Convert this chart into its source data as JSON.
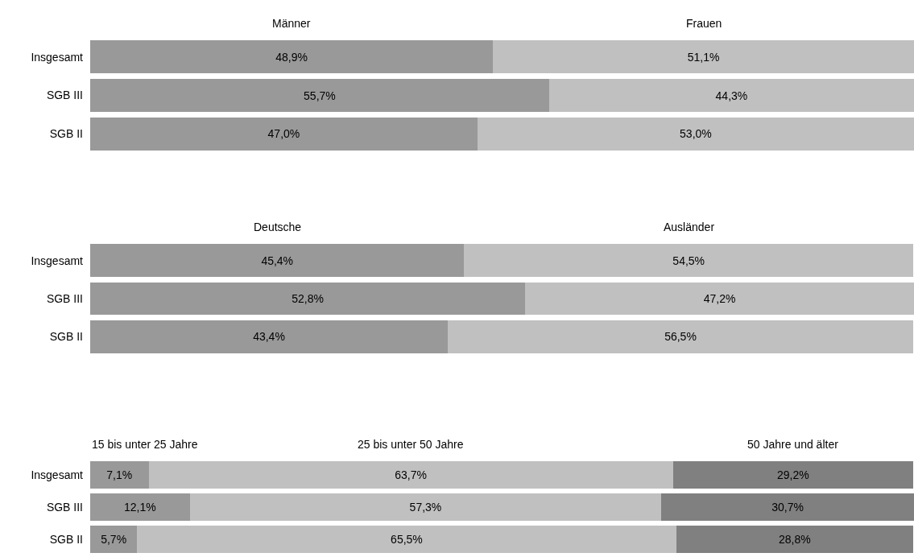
{
  "chart_data": [
    {
      "type": "bar",
      "orientation": "horizontal",
      "stacked": true,
      "legend": false,
      "tick_labels": "y",
      "categories": [
        "Insgesamt",
        "SGB III",
        "SGB II"
      ],
      "series": [
        {
          "name": "Männer",
          "color": "#999999",
          "values": [
            48.9,
            55.7,
            47.0
          ],
          "value_labels": [
            "48,9%",
            "55,7%",
            "47,0%"
          ]
        },
        {
          "name": "Frauen",
          "color": "#c0c0c0",
          "values": [
            51.1,
            44.3,
            53.0
          ],
          "value_labels": [
            "51,1%",
            "44,3%",
            "53,0%"
          ]
        }
      ]
    },
    {
      "type": "bar",
      "orientation": "horizontal",
      "stacked": true,
      "legend": false,
      "tick_labels": "y",
      "categories": [
        "Insgesamt",
        "SGB III",
        "SGB II"
      ],
      "series": [
        {
          "name": "Deutsche",
          "color": "#999999",
          "values": [
            45.4,
            52.8,
            43.4
          ],
          "value_labels": [
            "45,4%",
            "52,8%",
            "43,4%"
          ]
        },
        {
          "name": "Ausländer",
          "color": "#c0c0c0",
          "values": [
            54.5,
            47.2,
            56.5
          ],
          "value_labels": [
            "54,5%",
            "47,2%",
            "56,5%"
          ]
        }
      ]
    },
    {
      "type": "bar",
      "orientation": "horizontal",
      "stacked": true,
      "legend": false,
      "tick_labels": "y",
      "categories": [
        "Insgesamt",
        "SGB III",
        "SGB II"
      ],
      "series": [
        {
          "name": "15 bis unter 25 Jahre",
          "color": "#999999",
          "values": [
            7.1,
            12.1,
            5.7
          ],
          "value_labels": [
            "7,1%",
            "12,1%",
            "5,7%"
          ]
        },
        {
          "name": "25 bis unter 50 Jahre",
          "color": "#c0c0c0",
          "values": [
            63.7,
            57.3,
            65.5
          ],
          "value_labels": [
            "63,7%",
            "57,3%",
            "65,5%"
          ]
        },
        {
          "name": "50 Jahre und älter",
          "color": "#808080",
          "values": [
            29.2,
            30.7,
            28.8
          ],
          "value_labels": [
            "29,2%",
            "30,7%",
            "28,8%"
          ]
        }
      ]
    }
  ]
}
